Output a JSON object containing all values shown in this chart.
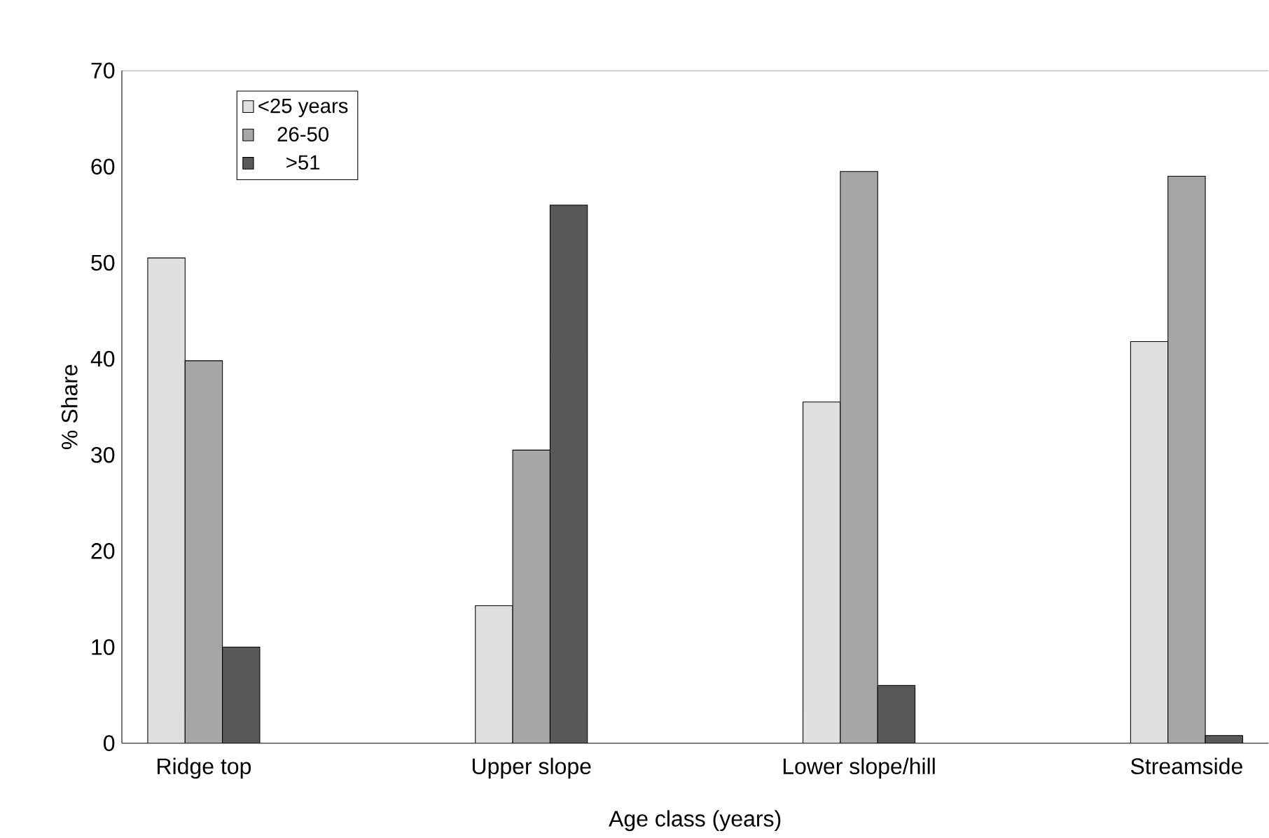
{
  "chart_data": {
    "type": "bar",
    "xlabel": "Age class (years)",
    "ylabel": "% Share",
    "categories": [
      "Ridge top",
      "Upper slope",
      "Lower slope/hill",
      "Streamside"
    ],
    "series": [
      {
        "name": "<25  years",
        "color": "#e0e0e0",
        "values": [
          50.5,
          14.3,
          35.5,
          41.8
        ]
      },
      {
        "name": "26-50",
        "color": "#a6a6a6",
        "values": [
          39.8,
          30.5,
          59.5,
          59
        ]
      },
      {
        "name": ">51",
        "color": "#595959",
        "values": [
          10,
          56,
          6,
          0.8
        ]
      }
    ],
    "ylim": [
      0,
      70
    ],
    "yticks": [
      0,
      10,
      20,
      30,
      40,
      50,
      60,
      70
    ],
    "legend": "top left",
    "grid": false
  }
}
